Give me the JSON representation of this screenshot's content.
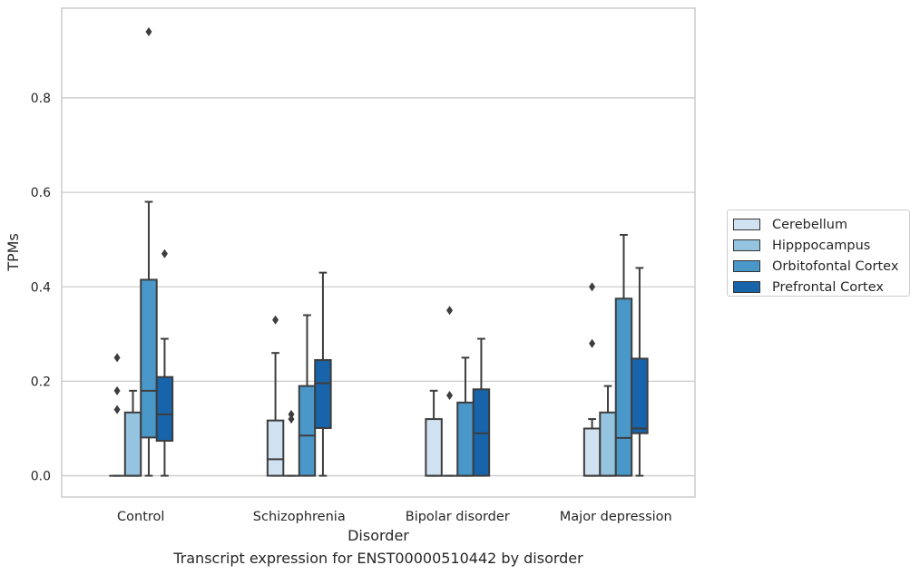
{
  "caption": "Transcript expression for ENST00000510442 by disorder",
  "chart_data": {
    "type": "box",
    "title": "",
    "xlabel": "Disorder",
    "ylabel": "TPMs",
    "ylim": [
      -0.045,
      0.99
    ],
    "yticks": [
      "0.0",
      "0.2",
      "0.4",
      "0.6",
      "0.8"
    ],
    "ytick_values": [
      0.0,
      0.2,
      0.4,
      0.6,
      0.8
    ],
    "grid": "horizontal",
    "legend_position": "right",
    "categories": [
      "Control",
      "Schizophrenia",
      "Bipolar disorder",
      "Major depression"
    ],
    "series": [
      {
        "name": "Cerebellum",
        "color": "#d0e1f2",
        "boxes": [
          {
            "whislo": 0.0,
            "q1": 0.0,
            "med": 0.0,
            "q3": 0.0,
            "whishi": 0.0,
            "fliers": [
              0.25,
              0.18,
              0.14
            ]
          },
          {
            "whislo": 0.0,
            "q1": 0.0,
            "med": 0.035,
            "q3": 0.117,
            "whishi": 0.26,
            "fliers": [
              0.33
            ]
          },
          {
            "whislo": 0.0,
            "q1": 0.0,
            "med": 0.0,
            "q3": 0.12,
            "whishi": 0.18,
            "fliers": []
          },
          {
            "whislo": 0.0,
            "q1": 0.0,
            "med": 0.0,
            "q3": 0.1,
            "whishi": 0.12,
            "fliers": [
              0.4,
              0.28
            ]
          }
        ]
      },
      {
        "name": "Hipppocampus",
        "color": "#94c4df",
        "boxes": [
          {
            "whislo": 0.0,
            "q1": 0.0,
            "med": 0.0,
            "q3": 0.134,
            "whishi": 0.18,
            "fliers": []
          },
          {
            "whislo": 0.0,
            "q1": 0.0,
            "med": 0.0,
            "q3": 0.0,
            "whishi": 0.0,
            "fliers": [
              0.13,
              0.12
            ]
          },
          {
            "whislo": 0.0,
            "q1": 0.0,
            "med": 0.0,
            "q3": 0.0,
            "whishi": 0.0,
            "fliers": [
              0.35,
              0.17
            ]
          },
          {
            "whislo": 0.0,
            "q1": 0.0,
            "med": 0.0,
            "q3": 0.134,
            "whishi": 0.19,
            "fliers": []
          }
        ]
      },
      {
        "name": "Orbitofontal Cortex",
        "color": "#4a98c9",
        "boxes": [
          {
            "whislo": 0.0,
            "q1": 0.081,
            "med": 0.18,
            "q3": 0.415,
            "whishi": 0.58,
            "fliers": [
              0.94
            ]
          },
          {
            "whislo": 0.0,
            "q1": 0.0,
            "med": 0.085,
            "q3": 0.19,
            "whishi": 0.34,
            "fliers": []
          },
          {
            "whislo": 0.0,
            "q1": 0.0,
            "med": 0.0,
            "q3": 0.155,
            "whishi": 0.25,
            "fliers": []
          },
          {
            "whislo": 0.0,
            "q1": 0.0,
            "med": 0.08,
            "q3": 0.375,
            "whishi": 0.51,
            "fliers": []
          }
        ]
      },
      {
        "name": "Prefrontal Cortex",
        "color": "#1764ab",
        "boxes": [
          {
            "whislo": 0.0,
            "q1": 0.074,
            "med": 0.13,
            "q3": 0.209,
            "whishi": 0.29,
            "fliers": [
              0.47
            ]
          },
          {
            "whislo": 0.0,
            "q1": 0.101,
            "med": 0.196,
            "q3": 0.245,
            "whishi": 0.43,
            "fliers": []
          },
          {
            "whislo": 0.0,
            "q1": 0.0,
            "med": 0.09,
            "q3": 0.183,
            "whishi": 0.29,
            "fliers": []
          },
          {
            "whislo": 0.0,
            "q1": 0.09,
            "med": 0.1,
            "q3": 0.248,
            "whishi": 0.44,
            "fliers": []
          }
        ]
      }
    ]
  }
}
